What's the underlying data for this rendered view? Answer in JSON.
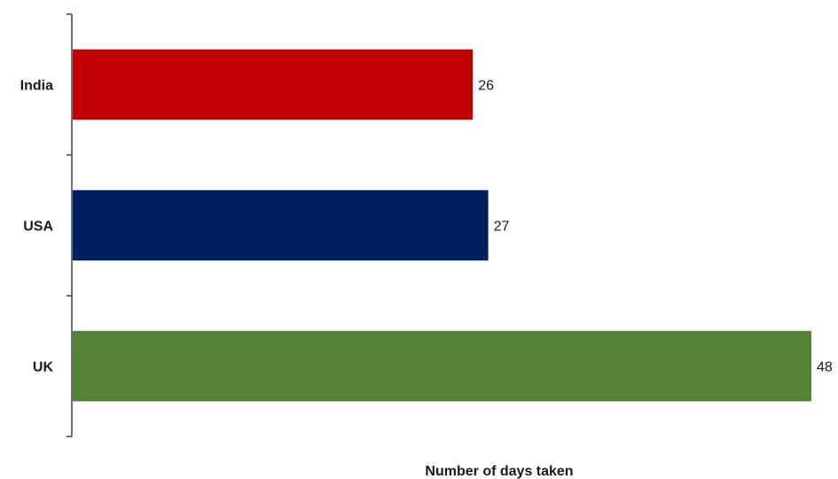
{
  "chart_data": {
    "type": "bar",
    "orientation": "horizontal",
    "categories": [
      "India",
      "USA",
      "UK"
    ],
    "values": [
      26,
      27,
      48
    ],
    "colors": [
      "#c00000",
      "#002060",
      "#548235"
    ],
    "title": "",
    "xlabel": "Number of days taken",
    "ylabel": "",
    "xlim": [
      0,
      48
    ],
    "grid": false,
    "legend": "none"
  }
}
